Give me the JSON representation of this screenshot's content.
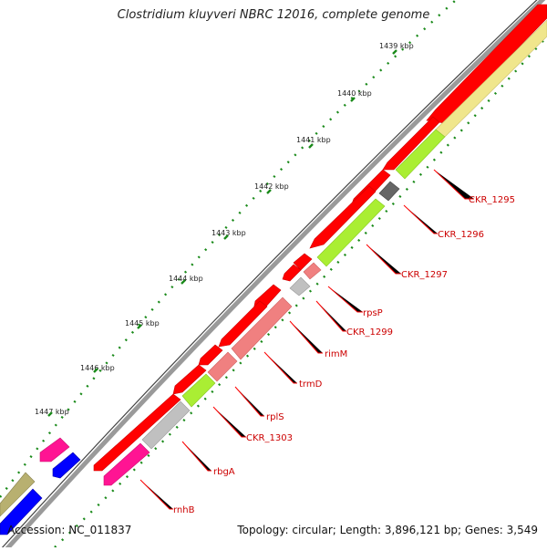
{
  "title": "Clostridium kluyveri NBRC 12016, complete genome",
  "footer": {
    "accession": "Accession: NC_011837",
    "summary": "Topology: circular; Length: 3,896,121 bp; Genes: 3,549"
  },
  "ruler": [
    "1439 kbp",
    "1440 kbp",
    "1441 kbp",
    "1442 kbp",
    "1443 kbp",
    "1444 kbp",
    "1445 kbp",
    "1446 kbp",
    "1447 kbp"
  ],
  "gene_labels": [
    "CKR_1295",
    "CKR_1296",
    "CKR_1297",
    "rpsP",
    "CKR_1299",
    "rimM",
    "trmD",
    "rplS",
    "CKR_1303",
    "rbgA",
    "rnhB"
  ],
  "colors": {
    "forward_red": "#ff0000",
    "salmon": "#f08080",
    "lime": "#aaee33",
    "grey": "#c0c0c0",
    "dark_grey": "#666666",
    "magenta": "#ff1493",
    "blue": "#0000ff",
    "khaki": "#b8b070",
    "pale_yellow": "#f0e68c",
    "tick_green": "#008000",
    "label_red": "#ff0000"
  }
}
